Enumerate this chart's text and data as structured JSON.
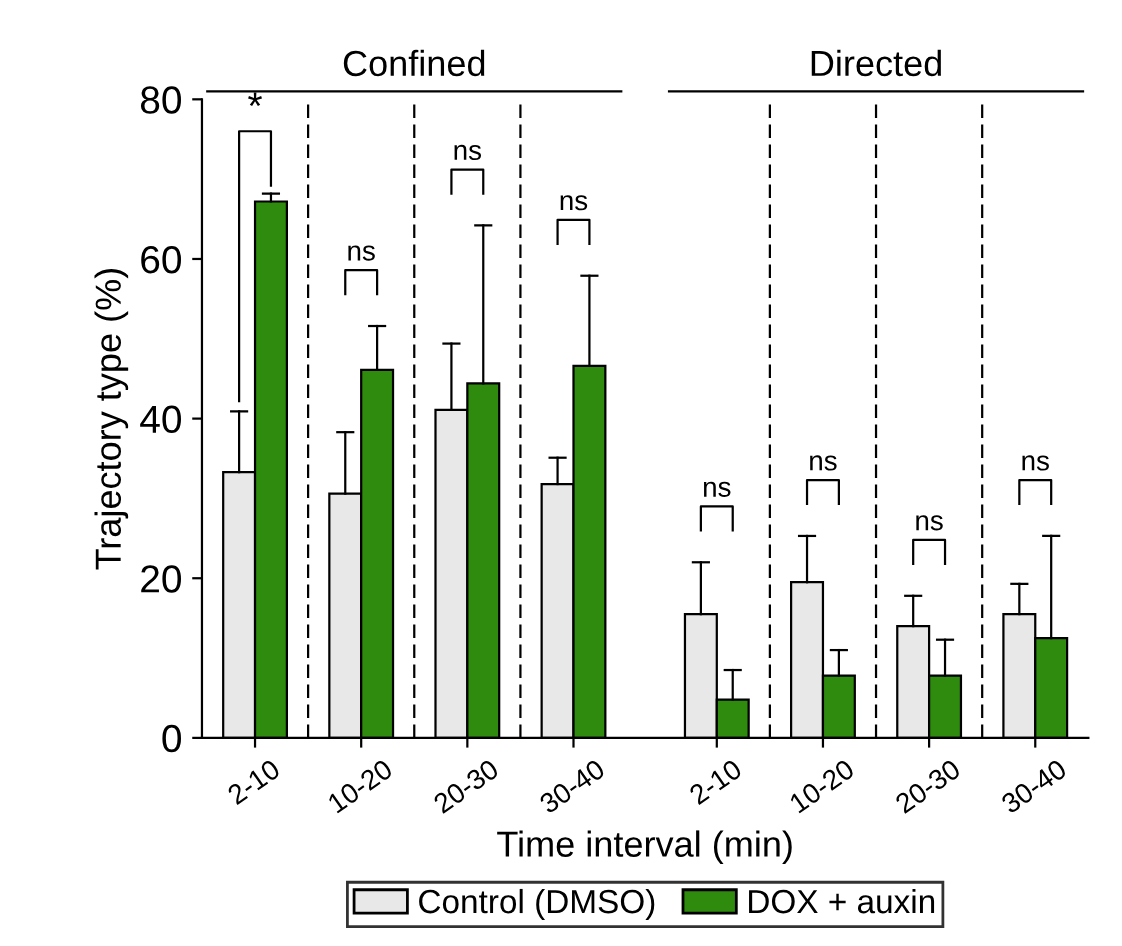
{
  "chart_data": {
    "type": "bar",
    "xlabel": "Time interval (min)",
    "ylabel": "Trajectory type (%)",
    "categories": [
      "2-10",
      "10-20",
      "20-30",
      "30-40",
      "2-10",
      "10-20",
      "20-30",
      "30-40"
    ],
    "series": [
      {
        "name": "Control (DMSO)",
        "color": "#e8e8e8",
        "values": [
          33.3,
          30.6,
          41.1,
          31.8,
          15.5,
          19.5,
          14,
          15.5
        ],
        "errors": [
          [
            33.3,
            40.9
          ],
          [
            30.6,
            38.3
          ],
          [
            41.1,
            49.4
          ],
          [
            31.8,
            35.1
          ],
          [
            15.5,
            22
          ],
          [
            19.5,
            25.3
          ],
          [
            14,
            17.8
          ],
          [
            15.5,
            19.3
          ]
        ]
      },
      {
        "name": "DOX + auxin",
        "color": "#2e8b0e",
        "values": [
          67.2,
          46.1,
          44.4,
          46.6,
          4.8,
          7.8,
          7.8,
          12.5
        ],
        "errors": [
          [
            67.2,
            68.2
          ],
          [
            46.1,
            51.6
          ],
          [
            44.4,
            64.2
          ],
          [
            46.6,
            57.9
          ],
          [
            4.8,
            8.5
          ],
          [
            7.8,
            11
          ],
          [
            7.8,
            12.3
          ],
          [
            12.5,
            25.3
          ]
        ]
      }
    ],
    "annotations": [
      "Confined",
      "Directed",
      "*",
      "ns",
      "ns",
      "ns",
      "ns",
      "ns",
      "ns",
      "ns"
    ],
    "ylim": [
      0,
      80
    ],
    "yticks": [
      0,
      20,
      40,
      60,
      80
    ],
    "legend": "bottom"
  }
}
